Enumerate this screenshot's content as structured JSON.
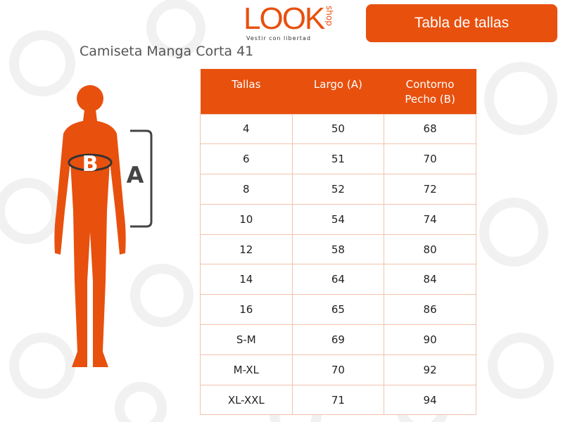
{
  "logo": {
    "brand": "LOOK",
    "side": "shop",
    "tagline": "Vestir con libertad"
  },
  "button": "Tabla de tallas",
  "title": "Camiseta Manga Corta 41",
  "figure": {
    "chest_label": "B",
    "length_label": "A"
  },
  "table": {
    "header": [
      "Tallas",
      "Largo (A)",
      "Contorno Pecho (B)"
    ],
    "rows": [
      [
        "4",
        50,
        68
      ],
      [
        "6",
        51,
        70
      ],
      [
        "8",
        52,
        72
      ],
      [
        "10",
        54,
        74
      ],
      [
        "12",
        58,
        80
      ],
      [
        "14",
        64,
        84
      ],
      [
        "16",
        65,
        86
      ],
      [
        "S-M",
        69,
        90
      ],
      [
        "M-XL",
        70,
        92
      ],
      [
        "XL-XXL",
        71,
        94
      ]
    ]
  }
}
